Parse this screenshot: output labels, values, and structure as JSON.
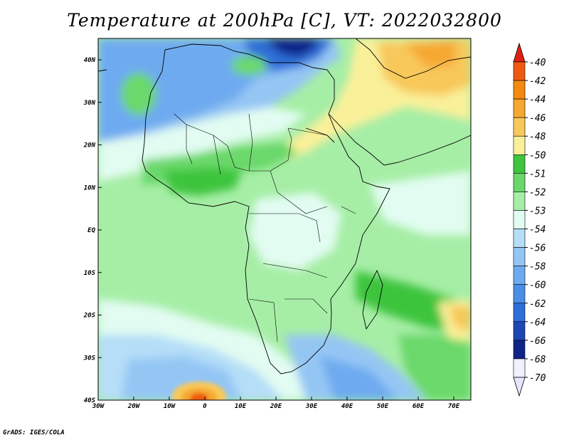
{
  "title": "Temperature at 200hPa [C], VT: 2022032800",
  "credit": "GrADS: IGES/COLA",
  "map": {
    "lat_labels": [
      "40N",
      "30N",
      "20N",
      "10N",
      "EQ",
      "10S",
      "20S",
      "30S",
      "40S"
    ],
    "lon_labels": [
      "30W",
      "20W",
      "10W",
      "0",
      "10E",
      "20E",
      "30E",
      "40E",
      "50E",
      "60E",
      "70E"
    ]
  },
  "colorbar": {
    "labels": [
      "-40",
      "-42",
      "-44",
      "-46",
      "-48",
      "-50",
      "-51",
      "-52",
      "-53",
      "-54",
      "-56",
      "-58",
      "-60",
      "-62",
      "-64",
      "-66",
      "-68",
      "-70"
    ],
    "colors": {
      "-40": "#e02010",
      "-42": "#f05a10",
      "-44": "#f48a10",
      "-46": "#f6a830",
      "-48": "#f8c85a",
      "-50": "#faf09a",
      "-51": "#3ec43e",
      "-52": "#6ad86a",
      "-53": "#a6eea6",
      "-54": "#e2fcf2",
      "-56": "#b6def8",
      "-58": "#94c6f4",
      "-60": "#6eaaf0",
      "-62": "#4a8ee8",
      "-64": "#2e6ed8",
      "-66": "#1c46b4",
      "-68": "#102488",
      "-70": "#f0f0ff"
    }
  }
}
